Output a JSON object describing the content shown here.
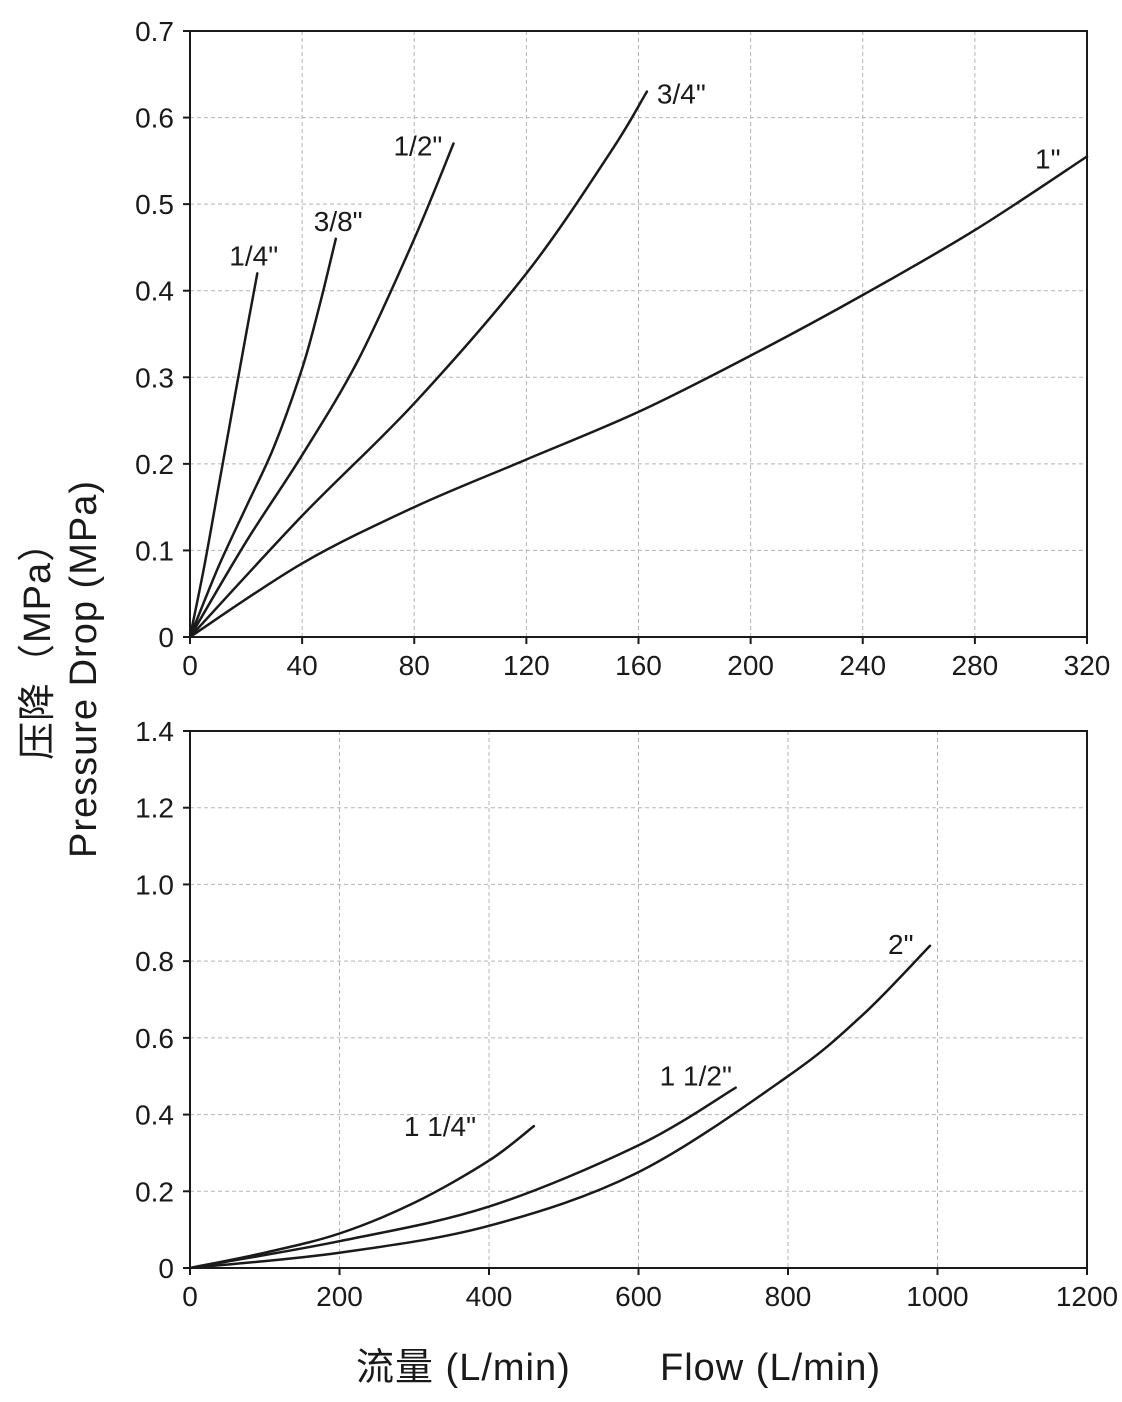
{
  "ylabel_cn": "压降（MPa）",
  "ylabel_en": "Pressure Drop (MPa)",
  "xlabel_cn": "流量 (L/min)",
  "xlabel_en": "Flow (L/min)",
  "chart_data": [
    {
      "type": "line",
      "xlim": [
        0,
        320
      ],
      "ylim": [
        0,
        0.7
      ],
      "xticks": [
        0,
        40,
        80,
        120,
        160,
        200,
        240,
        280,
        320
      ],
      "yticks": [
        0,
        0.1,
        0.2,
        0.3,
        0.4,
        0.5,
        0.6,
        0.7
      ],
      "xtick_labels": [
        "0",
        "40",
        "80",
        "120",
        "160",
        "200",
        "240",
        "280",
        "320"
      ],
      "ytick_labels": [
        "0",
        "0.1",
        "0.2",
        "0.3",
        "0.4",
        "0.5",
        "0.6",
        "0.7"
      ],
      "grid": true,
      "series": [
        {
          "name": "1/4\"",
          "x": [
            0,
            5,
            10,
            15,
            20,
            24
          ],
          "y": [
            0,
            0.08,
            0.17,
            0.26,
            0.35,
            0.42
          ]
        },
        {
          "name": "3/8\"",
          "x": [
            0,
            10,
            20,
            30,
            40,
            46,
            52
          ],
          "y": [
            0,
            0.08,
            0.15,
            0.22,
            0.31,
            0.38,
            0.46
          ]
        },
        {
          "name": "1/2\"",
          "x": [
            0,
            20,
            40,
            60,
            80,
            94
          ],
          "y": [
            0,
            0.11,
            0.21,
            0.32,
            0.46,
            0.57
          ]
        },
        {
          "name": "3/4\"",
          "x": [
            0,
            40,
            80,
            120,
            150,
            163
          ],
          "y": [
            0,
            0.14,
            0.27,
            0.42,
            0.56,
            0.63
          ]
        },
        {
          "name": "1\"",
          "x": [
            0,
            40,
            80,
            120,
            160,
            200,
            240,
            280,
            320
          ],
          "y": [
            0,
            0.085,
            0.15,
            0.205,
            0.26,
            0.325,
            0.395,
            0.47,
            0.555
          ]
        }
      ]
    },
    {
      "type": "line",
      "xlim": [
        0,
        1200
      ],
      "ylim": [
        0,
        1.4
      ],
      "xticks": [
        0,
        200,
        400,
        600,
        800,
        1000,
        1200
      ],
      "yticks": [
        0,
        0.2,
        0.4,
        0.6,
        0.8,
        1.0,
        1.2,
        1.4
      ],
      "xtick_labels": [
        "0",
        "200",
        "400",
        "600",
        "800",
        "1000",
        "1200"
      ],
      "ytick_labels": [
        "0",
        "0.2",
        "0.4",
        "0.6",
        "0.8",
        "1.0",
        "1.2",
        "1.4"
      ],
      "grid": true,
      "series": [
        {
          "name": "1 1/4\"",
          "x": [
            0,
            100,
            200,
            300,
            400,
            460
          ],
          "y": [
            0,
            0.04,
            0.09,
            0.17,
            0.28,
            0.37
          ]
        },
        {
          "name": "1 1/2\"",
          "x": [
            0,
            200,
            400,
            600,
            730
          ],
          "y": [
            0,
            0.07,
            0.16,
            0.32,
            0.47
          ]
        },
        {
          "name": "2\"",
          "x": [
            0,
            200,
            400,
            600,
            800,
            900,
            990
          ],
          "y": [
            0,
            0.04,
            0.11,
            0.25,
            0.5,
            0.66,
            0.84
          ]
        }
      ]
    }
  ]
}
